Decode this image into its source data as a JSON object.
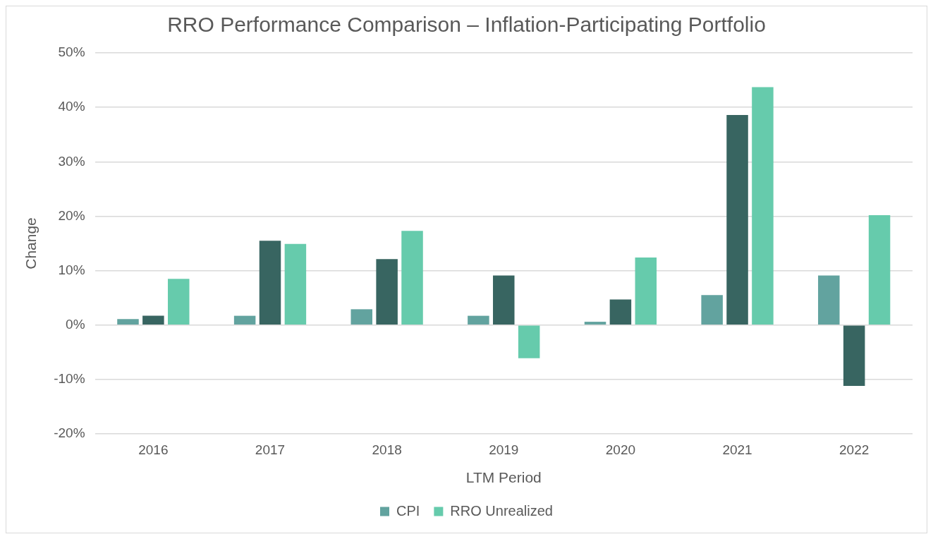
{
  "chart_data": {
    "type": "bar",
    "title": "RRO Performance Comparison – Inflation-Participating Portfolio",
    "xlabel": "LTM Period",
    "ylabel": "Change",
    "categories": [
      "2016",
      "2017",
      "2018",
      "2019",
      "2020",
      "2021",
      "2022"
    ],
    "series": [
      {
        "name": "CPI",
        "color": "#62a39f",
        "values": [
          1.1,
          1.7,
          2.9,
          1.7,
          0.6,
          5.5,
          9.1
        ]
      },
      {
        "color": "#386561",
        "values": [
          1.7,
          15.5,
          12.1,
          9.1,
          4.7,
          38.6,
          -11.2
        ]
      },
      {
        "name": "RRO Unrealized",
        "color": "#66cbac",
        "values": [
          8.5,
          14.9,
          17.3,
          -6.1,
          12.4,
          43.7,
          20.2
        ]
      }
    ],
    "ylim": [
      -20,
      50
    ],
    "yticks": [
      {
        "value": -20,
        "label": "-20%"
      },
      {
        "value": -10,
        "label": "-10%"
      },
      {
        "value": 0,
        "label": "0%"
      },
      {
        "value": 10,
        "label": "10%"
      },
      {
        "value": 20,
        "label": "20%"
      },
      {
        "value": 30,
        "label": "30%"
      },
      {
        "value": 40,
        "label": "40%"
      },
      {
        "value": 50,
        "label": "50%"
      }
    ],
    "grid": "y",
    "legend": "bottom"
  }
}
